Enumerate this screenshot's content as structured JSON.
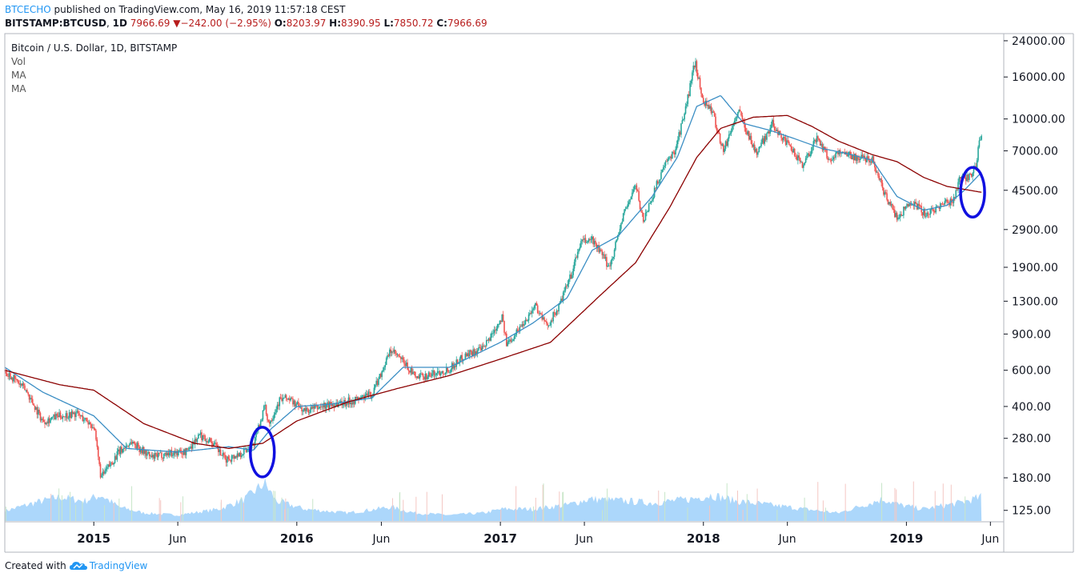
{
  "header": {
    "publisher": "BTCECHO",
    "published_text": "published on TradingView.com, May 16, 2019 11:57:18 CEST",
    "symbol": "BITSTAMP:BTCUSD",
    "interval": "1D",
    "last": "7966.69",
    "change": "−242.00 (−2.95%)",
    "o_label": "O:",
    "o": "8203.97",
    "h_label": "H:",
    "h": "8390.95",
    "l_label": "L:",
    "l": "7850.72",
    "c_label": "C:",
    "c": "7966.69"
  },
  "legend": {
    "title": "Bitcoin / U.S. Dollar, 1D, BITSTAMP",
    "vol": "Vol",
    "ma1": "MA",
    "ma2": "MA"
  },
  "footer": {
    "created_with": "Created with",
    "brand": "TradingView"
  },
  "colors": {
    "up": "#26a69a",
    "down": "#ef5350",
    "ma_fast": "#3b8ec4",
    "ma_slow": "#8b0000",
    "volume": "#90caf9",
    "ellipse": "#1010e0",
    "grid": "#e0e3eb",
    "axis": "#131722"
  },
  "chart_data": {
    "type": "line",
    "title": "Bitcoin / U.S. Dollar, 1D, BITSTAMP",
    "y_scale": "log",
    "ylim": [
      110,
      26000
    ],
    "xlim": [
      "2014-07-25",
      "2019-06-25"
    ],
    "y_ticks": [
      125,
      180,
      280,
      400,
      600,
      900,
      1300,
      1900,
      2900,
      4500,
      7000,
      10000,
      16000,
      24000
    ],
    "y_tick_labels": [
      "125.00",
      "180.00",
      "280.00",
      "400.00",
      "600.00",
      "900.00",
      "1300.00",
      "1900.00",
      "2900.00",
      "4500.00",
      "7000.00",
      "10000.00",
      "16000.00",
      "24000.00"
    ],
    "x_ticks": [
      {
        "date": "2015-01-01",
        "label": "2015",
        "bold": true
      },
      {
        "date": "2015-06-01",
        "label": "Jun",
        "bold": false
      },
      {
        "date": "2016-01-01",
        "label": "2016",
        "bold": true
      },
      {
        "date": "2016-06-01",
        "label": "Jun",
        "bold": false
      },
      {
        "date": "2017-01-01",
        "label": "2017",
        "bold": true
      },
      {
        "date": "2017-06-01",
        "label": "Jun",
        "bold": false
      },
      {
        "date": "2018-01-01",
        "label": "2018",
        "bold": true
      },
      {
        "date": "2018-06-01",
        "label": "Jun",
        "bold": false
      },
      {
        "date": "2019-01-01",
        "label": "2019",
        "bold": true
      },
      {
        "date": "2019-06-01",
        "label": "Jun",
        "bold": false
      }
    ],
    "grid": false,
    "series": [
      {
        "key": "price",
        "x": [
          "2014-07-25",
          "2014-09-01",
          "2014-10-01",
          "2014-11-01",
          "2014-12-01",
          "2015-01-01",
          "2015-01-14",
          "2015-02-15",
          "2015-03-10",
          "2015-04-15",
          "2015-05-15",
          "2015-06-15",
          "2015-07-10",
          "2015-08-01",
          "2015-08-25",
          "2015-09-20",
          "2015-10-15",
          "2015-11-04",
          "2015-11-12",
          "2015-12-01",
          "2015-12-15",
          "2016-01-15",
          "2016-02-15",
          "2016-03-15",
          "2016-04-15",
          "2016-05-15",
          "2016-06-18",
          "2016-07-10",
          "2016-08-03",
          "2016-09-01",
          "2016-10-01",
          "2016-11-01",
          "2016-12-01",
          "2017-01-04",
          "2017-01-12",
          "2017-02-15",
          "2017-03-05",
          "2017-03-25",
          "2017-04-15",
          "2017-05-10",
          "2017-05-25",
          "2017-06-15",
          "2017-07-16",
          "2017-08-10",
          "2017-09-01",
          "2017-09-15",
          "2017-10-01",
          "2017-10-20",
          "2017-11-10",
          "2017-11-28",
          "2017-12-17",
          "2017-12-30",
          "2018-01-16",
          "2018-02-06",
          "2018-03-05",
          "2018-04-06",
          "2018-05-05",
          "2018-06-01",
          "2018-06-29",
          "2018-07-25",
          "2018-08-15",
          "2018-09-05",
          "2018-10-01",
          "2018-11-01",
          "2018-11-20",
          "2018-12-15",
          "2019-01-10",
          "2019-02-07",
          "2019-03-01",
          "2019-03-25",
          "2019-04-05",
          "2019-04-25",
          "2019-05-05",
          "2019-05-12",
          "2019-05-16"
        ],
        "y": [
          600,
          480,
          340,
          360,
          370,
          320,
          180,
          240,
          270,
          225,
          238,
          240,
          290,
          270,
          220,
          235,
          260,
          400,
          330,
          430,
          440,
          380,
          400,
          415,
          430,
          460,
          750,
          660,
          550,
          575,
          610,
          720,
          760,
          1100,
          800,
          1050,
          1250,
          980,
          1200,
          1800,
          2500,
          2600,
          1900,
          3400,
          4800,
          3200,
          4200,
          5700,
          7000,
          10500,
          19200,
          12500,
          11000,
          7000,
          11000,
          6800,
          9500,
          7500,
          6000,
          8200,
          6300,
          7000,
          6500,
          6400,
          4500,
          3300,
          4000,
          3400,
          3800,
          4000,
          5000,
          5300,
          5700,
          7600,
          7966
        ]
      },
      {
        "key": "ma_fast",
        "x": [
          "2014-07-25",
          "2014-10-01",
          "2015-01-01",
          "2015-03-01",
          "2015-06-01",
          "2015-09-01",
          "2015-10-15",
          "2015-11-15",
          "2016-01-01",
          "2016-03-01",
          "2016-05-15",
          "2016-07-10",
          "2016-10-01",
          "2017-01-01",
          "2017-03-01",
          "2017-05-01",
          "2017-06-15",
          "2017-08-01",
          "2017-10-01",
          "2017-11-15",
          "2017-12-20",
          "2018-02-01",
          "2018-03-15",
          "2018-05-01",
          "2018-06-15",
          "2018-08-01",
          "2018-09-15",
          "2018-11-01",
          "2018-12-15",
          "2019-02-01",
          "2019-03-15",
          "2019-04-15",
          "2019-05-16"
        ],
        "y": [
          620,
          470,
          360,
          250,
          240,
          255,
          245,
          310,
          400,
          410,
          440,
          620,
          620,
          820,
          1020,
          1350,
          2300,
          2700,
          4200,
          6500,
          11500,
          13000,
          9500,
          8800,
          8000,
          7200,
          6800,
          6300,
          4200,
          3600,
          3800,
          4500,
          5500
        ]
      },
      {
        "key": "ma_slow",
        "x": [
          "2014-07-25",
          "2014-11-01",
          "2015-01-01",
          "2015-04-01",
          "2015-07-01",
          "2015-09-01",
          "2015-11-01",
          "2016-01-01",
          "2016-04-01",
          "2016-07-01",
          "2016-10-01",
          "2017-01-01",
          "2017-04-01",
          "2017-07-01",
          "2017-09-01",
          "2017-11-01",
          "2017-12-20",
          "2018-02-01",
          "2018-04-01",
          "2018-06-01",
          "2018-07-15",
          "2018-09-01",
          "2018-11-01",
          "2018-12-15",
          "2019-02-01",
          "2019-03-15",
          "2019-05-16"
        ],
        "y": [
          600,
          510,
          480,
          330,
          265,
          250,
          265,
          340,
          420,
          490,
          565,
          680,
          820,
          1400,
          2000,
          3700,
          6500,
          9000,
          10200,
          10400,
          9200,
          7800,
          6700,
          6200,
          5200,
          4700,
          4400
        ]
      }
    ],
    "volume": {
      "x": [
        "2014-07-25",
        "2014-09-15",
        "2014-11-01",
        "2014-12-15",
        "2015-01-14",
        "2015-02-15",
        "2015-04-01",
        "2015-06-01",
        "2015-08-15",
        "2015-09-30",
        "2015-11-04",
        "2015-11-25",
        "2016-01-15",
        "2016-04-01",
        "2016-06-18",
        "2016-08-01",
        "2016-10-01",
        "2016-12-01",
        "2017-01-05",
        "2017-03-01",
        "2017-05-01",
        "2017-06-10",
        "2017-08-15",
        "2017-10-01",
        "2017-12-10",
        "2018-01-15",
        "2018-03-01",
        "2018-05-01",
        "2018-07-01",
        "2018-09-01",
        "2018-11-20",
        "2018-12-20",
        "2019-02-01",
        "2019-04-05",
        "2019-05-16"
      ],
      "rel": [
        0.25,
        0.45,
        0.6,
        0.5,
        0.65,
        0.35,
        0.2,
        0.15,
        0.3,
        0.55,
        0.95,
        0.5,
        0.3,
        0.2,
        0.35,
        0.2,
        0.15,
        0.2,
        0.3,
        0.3,
        0.4,
        0.55,
        0.5,
        0.45,
        0.55,
        0.65,
        0.5,
        0.4,
        0.3,
        0.2,
        0.55,
        0.4,
        0.3,
        0.45,
        0.6
      ]
    },
    "annotations": [
      {
        "shape": "ellipse",
        "date": "2015-10-31",
        "center_value": 240
      },
      {
        "shape": "ellipse",
        "date": "2019-04-30",
        "center_value": 4400
      }
    ]
  }
}
